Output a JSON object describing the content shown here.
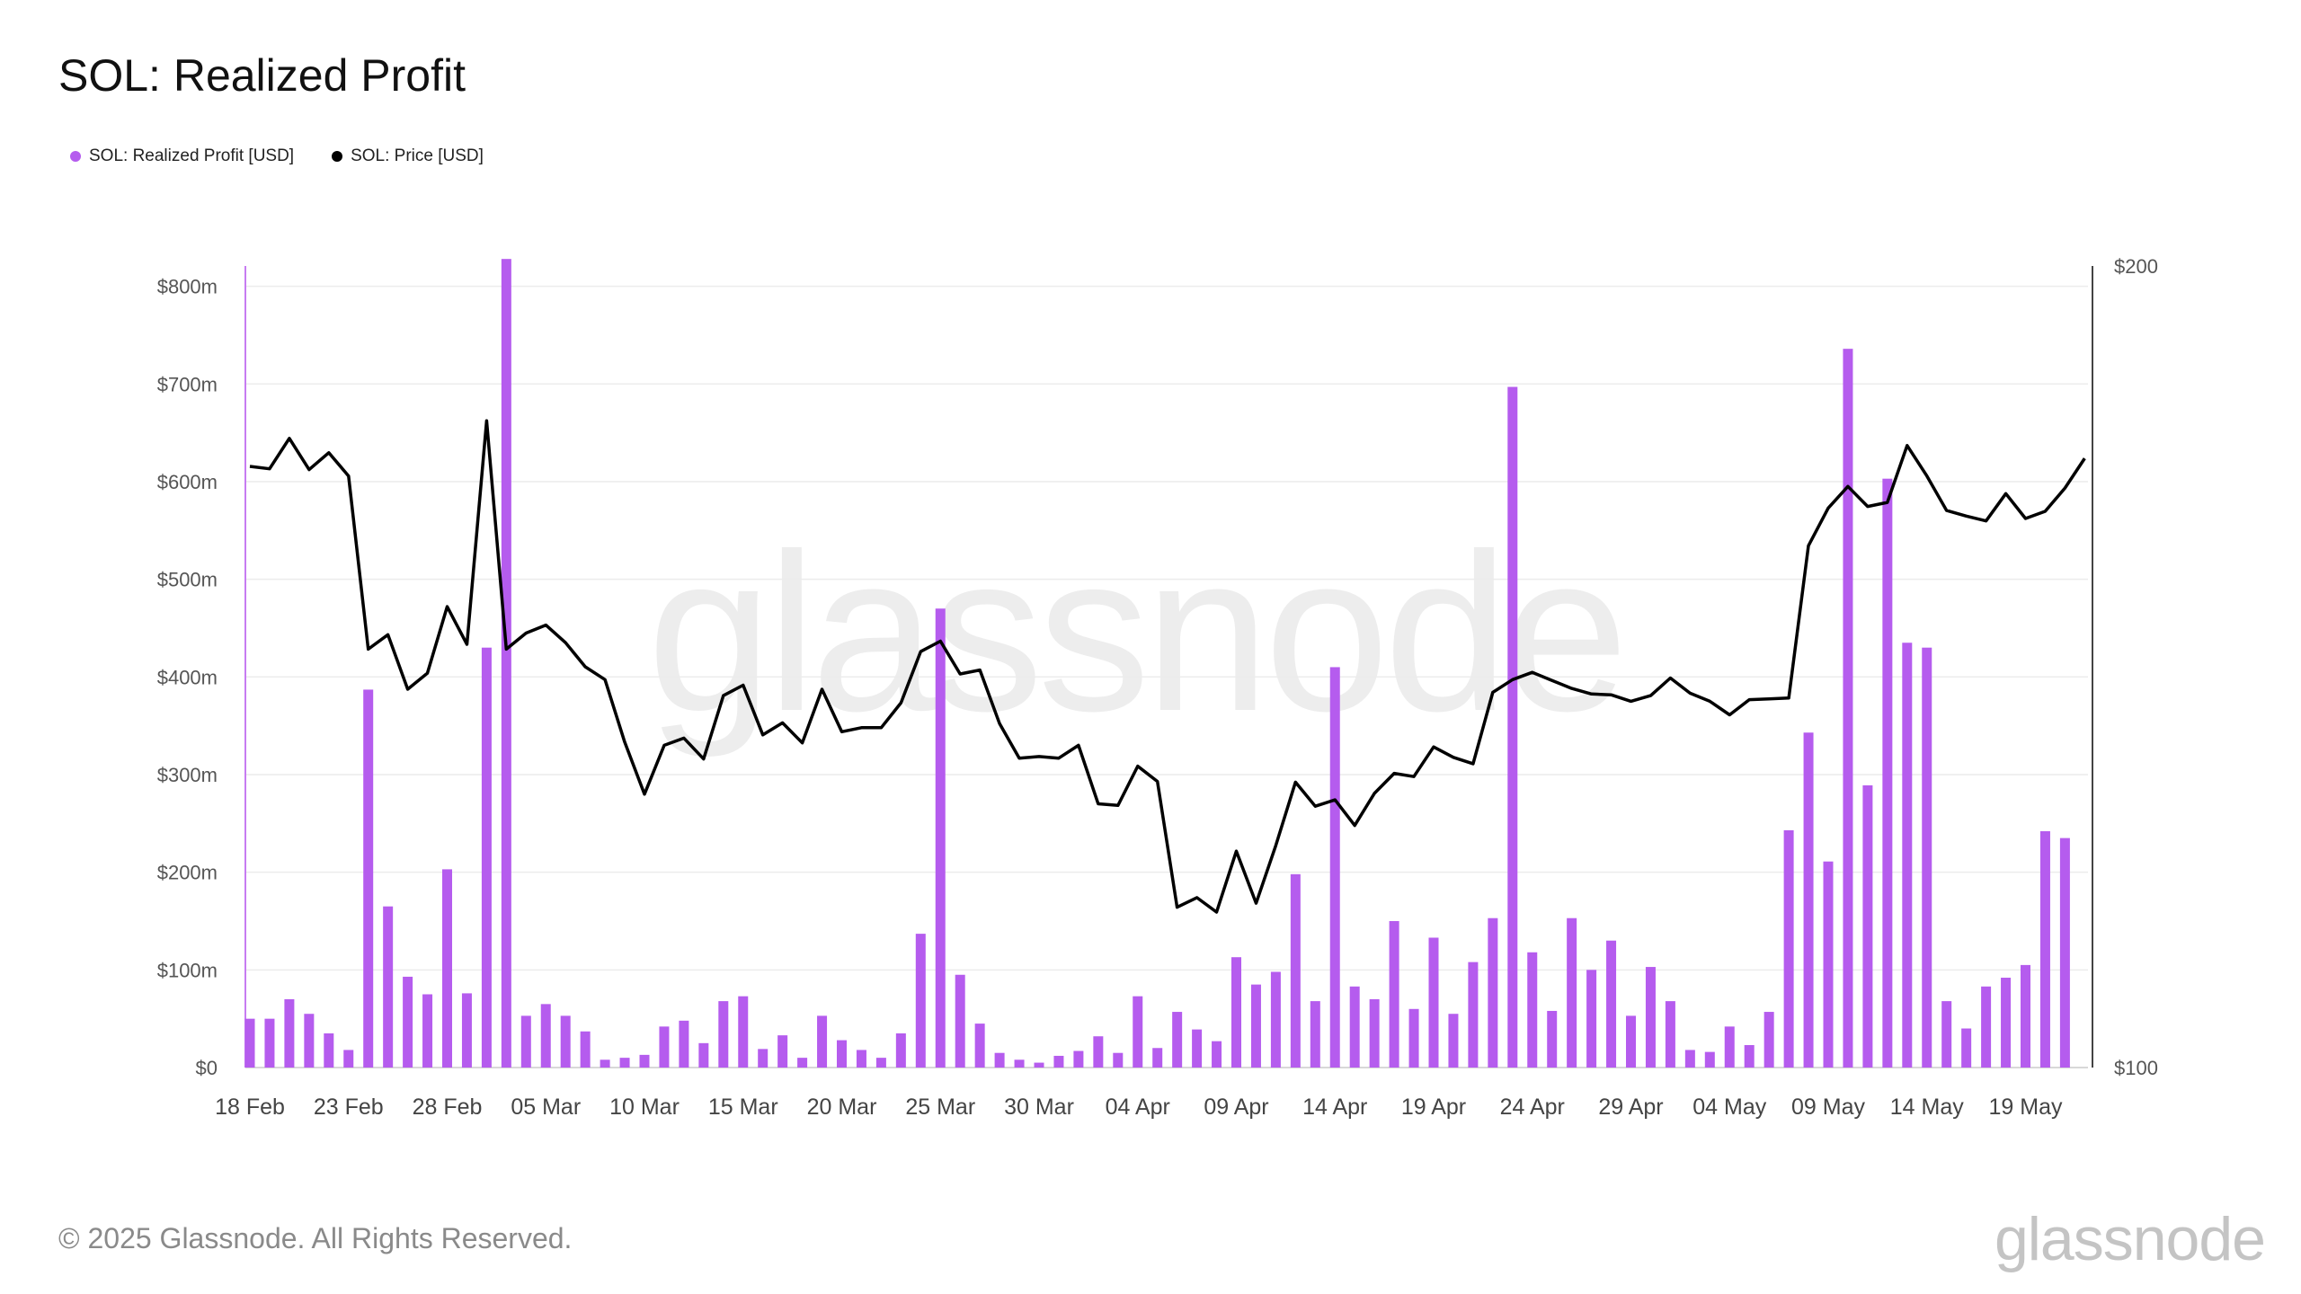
{
  "title": "SOL: Realized Profit",
  "legend": [
    {
      "label": "SOL: Realized Profit [USD]",
      "color": "#b55cee"
    },
    {
      "label": "SOL: Price [USD]",
      "color": "#000000"
    }
  ],
  "watermark": "glassnode",
  "footer": {
    "copyright": "© 2025 Glassnode. All Rights Reserved.",
    "logo": "glassnode"
  },
  "chart_data": {
    "type": "bar",
    "title": "SOL: Realized Profit",
    "x_tick_labels": [
      "18 Feb",
      "23 Feb",
      "28 Feb",
      "05 Mar",
      "10 Mar",
      "15 Mar",
      "20 Mar",
      "25 Mar",
      "30 Mar",
      "04 Apr",
      "09 Apr",
      "14 Apr",
      "19 Apr",
      "24 Apr",
      "29 Apr",
      "04 May",
      "09 May",
      "14 May",
      "19 May"
    ],
    "y_left": {
      "tick_labels": [
        "$0",
        "$100m",
        "$200m",
        "$300m",
        "$400m",
        "$500m",
        "$600m",
        "$700m",
        "$800m"
      ],
      "ylim": [
        0,
        830
      ],
      "unit": "USD millions"
    },
    "y_right": {
      "tick_labels": [
        "$100",
        "$200"
      ],
      "ylim": [
        100,
        200
      ],
      "unit": "USD"
    },
    "grid": true,
    "legend_position": "top-left",
    "series": [
      {
        "name": "SOL: Realized Profit [USD]",
        "type": "bar",
        "axis": "left",
        "color": "#b55cee",
        "values": [
          50,
          50,
          70,
          55,
          35,
          18,
          387,
          165,
          93,
          75,
          203,
          76,
          430,
          828,
          53,
          65,
          53,
          37,
          8,
          10,
          13,
          42,
          48,
          25,
          68,
          73,
          19,
          33,
          10,
          53,
          28,
          18,
          10,
          35,
          137,
          470,
          95,
          45,
          15,
          8,
          5,
          12,
          17,
          32,
          15,
          73,
          20,
          57,
          39,
          27,
          113,
          85,
          98,
          198,
          68,
          410,
          83,
          70,
          150,
          60,
          133,
          55,
          108,
          153,
          697,
          118,
          58,
          153,
          100,
          130,
          53,
          103,
          68,
          18,
          16,
          42,
          23,
          57,
          243,
          343,
          211,
          736,
          289,
          603,
          435,
          430,
          68,
          40,
          83,
          92,
          105,
          242,
          235
        ]
      },
      {
        "name": "SOL: Price [USD]",
        "type": "line",
        "axis": "right",
        "color": "#000000",
        "values": [
          175.0,
          174.7,
          178.5,
          174.6,
          176.7,
          173.8,
          152.2,
          154.0,
          147.2,
          149.2,
          157.5,
          152.8,
          180.7,
          152.2,
          154.2,
          155.2,
          153.0,
          150.0,
          148.4,
          140.6,
          134.1,
          140.2,
          141.1,
          138.5,
          146.4,
          147.7,
          141.5,
          143.0,
          140.5,
          147.2,
          141.9,
          142.4,
          142.4,
          145.5,
          151.9,
          153.2,
          149.1,
          149.6,
          142.9,
          138.6,
          138.8,
          138.6,
          140.2,
          132.9,
          132.7,
          137.6,
          135.7,
          120.0,
          121.2,
          119.4,
          127.0,
          120.5,
          127.7,
          135.6,
          132.6,
          133.4,
          130.2,
          134.2,
          136.7,
          136.3,
          140.0,
          138.7,
          137.9,
          146.8,
          148.4,
          149.3,
          148.3,
          147.3,
          146.6,
          146.5,
          145.7,
          146.4,
          148.6,
          146.7,
          145.7,
          144.0,
          145.9,
          146.0,
          146.1,
          165.1,
          169.8,
          172.5,
          170.0,
          170.5,
          177.6,
          173.8,
          169.5,
          168.8,
          168.2,
          171.6,
          168.5,
          169.4,
          172.3,
          176.0
        ]
      }
    ]
  }
}
